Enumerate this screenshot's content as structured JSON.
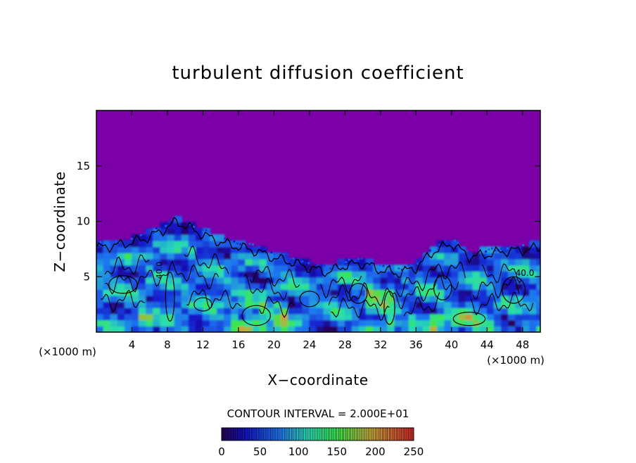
{
  "chart_data": {
    "type": "heatmap",
    "title": "turbulent diffusion coefficient",
    "xlabel": "X−coordinate",
    "ylabel": "Z−coordinate",
    "x_unit_label": "(×1000 m)",
    "x_unit_label_right": "(×1000 m)",
    "xlim": [
      0,
      50
    ],
    "ylim": [
      0,
      20
    ],
    "xticks": [
      4,
      8,
      12,
      16,
      20,
      24,
      28,
      32,
      36,
      40,
      44,
      48
    ],
    "yticks": [
      5,
      10,
      15
    ],
    "contour_interval_text": "CONTOUR INTERVAL = 2.000E+01",
    "contour_inline_labels": [
      "40.0",
      "40.0"
    ],
    "colorbar": {
      "min": 0,
      "max": 250,
      "ticks": [
        0,
        50,
        100,
        150,
        200,
        250
      ]
    },
    "field_description_top": "uniform 0 above ~7.5 km",
    "boundary_layer_top_profile": {
      "x": [
        0,
        2,
        4,
        6,
        8,
        9,
        10,
        12,
        14,
        16,
        18,
        20,
        22,
        24,
        26,
        28,
        30,
        32,
        34,
        36,
        38,
        40,
        42,
        44,
        46,
        48,
        50
      ],
      "z": [
        7.8,
        8.0,
        8.3,
        8.8,
        9.6,
        10.2,
        9.8,
        9.0,
        8.3,
        7.9,
        7.5,
        6.9,
        6.5,
        6.0,
        5.6,
        6.2,
        6.4,
        5.8,
        5.5,
        6.0,
        7.5,
        8.2,
        7.0,
        7.2,
        7.5,
        7.6,
        7.8
      ]
    },
    "colors": {
      "background_field": "#7b00a8",
      "low_values": "#1a20c8",
      "mid_values": "#2f8fe8",
      "high_values": "#2ee0a0"
    }
  }
}
